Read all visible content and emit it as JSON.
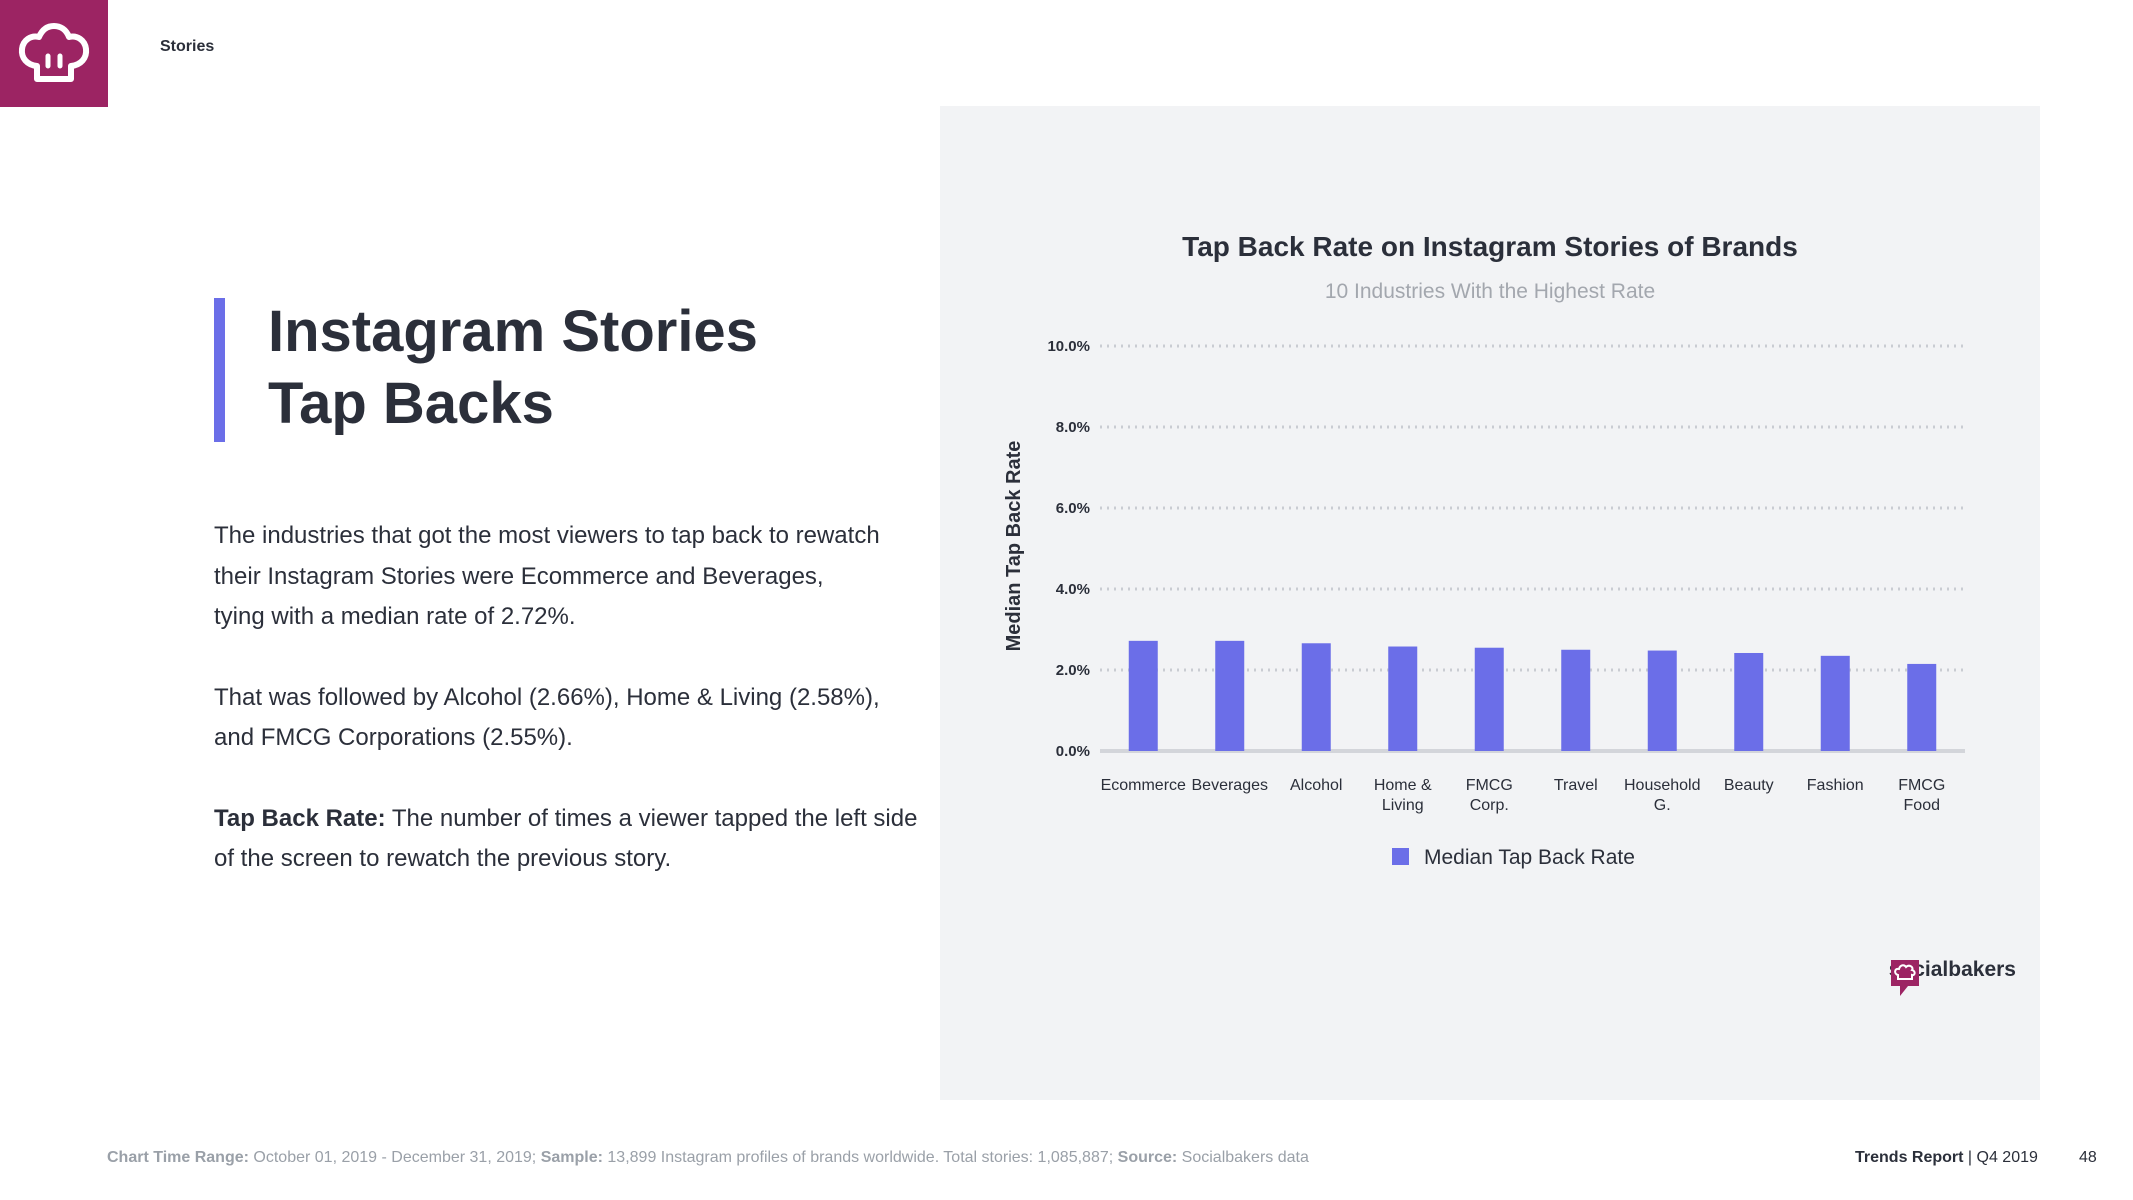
{
  "header": {
    "section": "Stories"
  },
  "title": {
    "line1": "Instagram Stories",
    "line2": "Tap Backs"
  },
  "body": {
    "p1": [
      "The industries that got the most viewers to tap back to rewatch",
      "their Instagram Stories were Ecommerce and Beverages,",
      "tying with a median rate of 2.72%."
    ],
    "p2": [
      "That was followed by Alcohol (2.66%), Home & Living (2.58%),",
      "and FMCG Corporations (2.55%)."
    ],
    "p3_term": "Tap Back Rate:",
    "p3_line1": "The number of times a viewer tapped the left side",
    "p3_line2": "of the screen to rewatch the previous story."
  },
  "brand": {
    "name": "socialbakers"
  },
  "colors": {
    "bar": "#6b6ee8",
    "accent": "#9c2463",
    "panel": "#f2f3f5"
  },
  "chart_data": {
    "type": "bar",
    "title": "Tap Back Rate on Instagram Stories of Brands",
    "subtitle": "10 Industries With the Highest Rate",
    "ylabel": "Median Tap Back Rate",
    "xlabel": "",
    "categories": [
      [
        "Ecommerce"
      ],
      [
        "Beverages"
      ],
      [
        "Alcohol"
      ],
      [
        "Home &",
        "Living"
      ],
      [
        "FMCG",
        "Corp."
      ],
      [
        "Travel"
      ],
      [
        "Household",
        "G."
      ],
      [
        "Beauty"
      ],
      [
        "Fashion"
      ],
      [
        "FMCG",
        "Food"
      ]
    ],
    "series": [
      {
        "name": "Median Tap Back Rate",
        "values": [
          2.72,
          2.72,
          2.66,
          2.58,
          2.55,
          2.5,
          2.48,
          2.42,
          2.35,
          2.15
        ]
      }
    ],
    "ylim": [
      0,
      10
    ],
    "yticks": [
      0,
      2,
      4,
      6,
      8,
      10
    ],
    "ytick_labels": [
      "0.0%",
      "2.0%",
      "4.0%",
      "6.0%",
      "8.0%",
      "10.0%"
    ],
    "grid": true,
    "legend": "bottom"
  },
  "footer": {
    "label_range": "Chart Time Range:",
    "text_range": "October  01, 2019 - December 31, 2019;",
    "label_sample": "Sample:",
    "text_sample": "13,899 Instagram profiles of brands worldwide. Total stories: 1,085,887;",
    "label_source": "Source:",
    "text_source": "Socialbakers data",
    "report_bold": "Trends Report",
    "report_rest": " | Q4 2019",
    "page": "48"
  }
}
